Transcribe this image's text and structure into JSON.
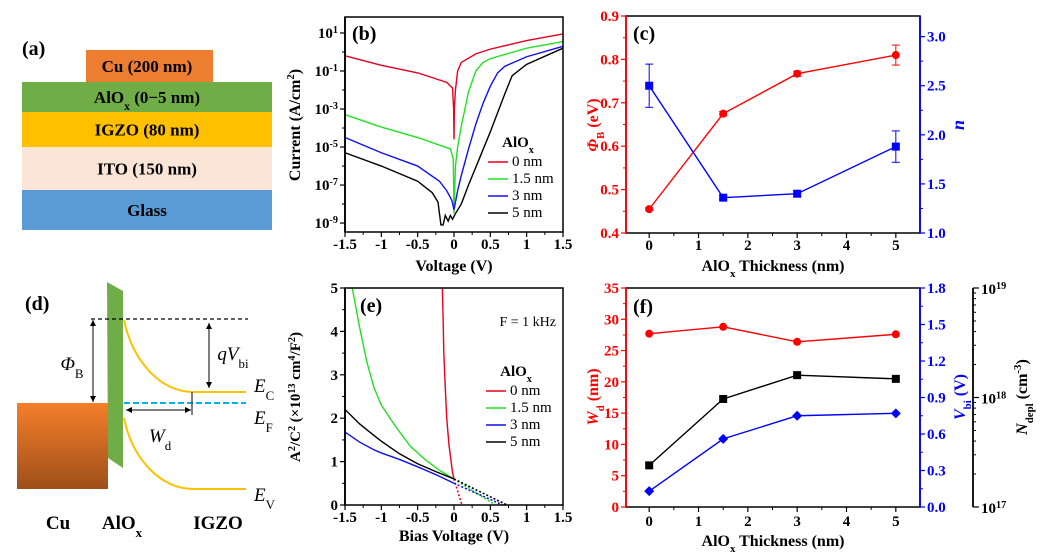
{
  "panel_a": {
    "label": "(a)",
    "layers": [
      {
        "name": [
          [
            "Cu (200 nm)",
            ""
          ]
        ],
        "color": "#ED7D31"
      },
      {
        "name": [
          [
            "AlO",
            ""
          ],
          [
            "x",
            "sub"
          ],
          [
            " (0−5 nm)",
            ""
          ]
        ],
        "color": "#70AD47"
      },
      {
        "name": [
          [
            "IGZO (80 nm)",
            ""
          ]
        ],
        "color": "#FFC000"
      },
      {
        "name": [
          [
            "ITO (150 nm)",
            ""
          ]
        ],
        "color": "#FBE5D6"
      },
      {
        "name": [
          [
            "Glass",
            ""
          ]
        ],
        "color": "#5B9BD5"
      }
    ]
  },
  "panel_d": {
    "label": "(d)",
    "phi_b": [
      [
        "Φ",
        "i"
      ],
      [
        "B",
        "sub"
      ]
    ],
    "qvbi": [
      [
        "qV",
        "i"
      ],
      [
        "bi",
        "sub"
      ]
    ],
    "wd": [
      [
        "W",
        "i"
      ],
      [
        "d",
        "sub"
      ]
    ],
    "ec": [
      [
        "E",
        "i"
      ],
      [
        "C",
        "sub"
      ]
    ],
    "ef": [
      [
        "E",
        "i"
      ],
      [
        "F",
        "sub"
      ]
    ],
    "ev": [
      [
        "E",
        "i"
      ],
      [
        "V",
        "sub"
      ]
    ],
    "materials": [
      [
        [
          "Cu",
          ""
        ]
      ],
      [
        [
          "AlO",
          ""
        ],
        [
          "x",
          "sub"
        ]
      ],
      [
        [
          "IGZO",
          ""
        ]
      ]
    ],
    "colors": {
      "metal": "#E2762A",
      "oxide": "#70AD47",
      "bands": "#FFC000",
      "fermi": "#00B0F0"
    }
  },
  "chart_data": [
    {
      "panel": "(b)",
      "type": "line",
      "y_scale": "log",
      "xlabel": [
        [
          "Voltage (V)",
          ""
        ]
      ],
      "ylabel": [
        [
          "Current (A/cm",
          ""
        ],
        [
          "2",
          "sup"
        ],
        [
          ")",
          ""
        ]
      ],
      "xlim": [
        -1.5,
        1.5
      ],
      "ylim_log10": [
        -9.47,
        1.84
      ],
      "xticks": [
        -1.5,
        -1,
        -0.5,
        0,
        0.5,
        1,
        1.5
      ],
      "xtick_labels": [
        "-1.5",
        "-1",
        "-0.5",
        "0",
        "0.5",
        "1",
        "1.5"
      ],
      "yticks_log10": [
        1,
        -1,
        -3,
        -5,
        -7,
        -9
      ],
      "ytick_labels": [
        [
          [
            "10",
            ""
          ],
          [
            "1",
            "sup"
          ]
        ],
        [
          [
            "10",
            ""
          ],
          [
            "-1",
            "sup"
          ]
        ],
        [
          [
            "10",
            ""
          ],
          [
            "-3",
            "sup"
          ]
        ],
        [
          [
            "10",
            ""
          ],
          [
            "-5",
            "sup"
          ]
        ],
        [
          [
            "10",
            ""
          ],
          [
            "-7",
            "sup"
          ]
        ],
        [
          [
            "10",
            ""
          ],
          [
            "-9",
            "sup"
          ]
        ]
      ],
      "legend_title": [
        [
          "AlO",
          ""
        ],
        [
          "x",
          "sub"
        ]
      ],
      "legend_position": "bottom-right",
      "series": [
        {
          "name": "0 nm",
          "color": "#E8001C",
          "log10_current": [
            [
              -1.5,
              -0.2
            ],
            [
              -1,
              -0.7
            ],
            [
              -0.5,
              -1.1
            ],
            [
              -0.1,
              -1.6
            ],
            [
              -0.02,
              -1.9
            ],
            [
              -0.005,
              -3
            ],
            [
              0,
              -4.6
            ],
            [
              0.005,
              -3
            ],
            [
              0.02,
              -2
            ],
            [
              0.05,
              -1
            ],
            [
              0.1,
              -0.55
            ],
            [
              0.3,
              -0.1
            ],
            [
              0.5,
              0.15
            ],
            [
              1.0,
              0.6
            ],
            [
              1.5,
              0.95
            ]
          ]
        },
        {
          "name": "1.5 nm",
          "color": "#22E022",
          "log10_current": [
            [
              -1.5,
              -3.3
            ],
            [
              -1,
              -3.95
            ],
            [
              -0.5,
              -4.5
            ],
            [
              -0.05,
              -5.1
            ],
            [
              -0.01,
              -5.6
            ],
            [
              0,
              -8.5
            ],
            [
              0.02,
              -6
            ],
            [
              0.05,
              -5
            ],
            [
              0.1,
              -3.9
            ],
            [
              0.2,
              -2.1
            ],
            [
              0.3,
              -1
            ],
            [
              0.4,
              -0.55
            ],
            [
              0.5,
              -0.35
            ],
            [
              1,
              0.2
            ],
            [
              1.5,
              0.55
            ]
          ]
        },
        {
          "name": "3 nm",
          "color": "#1010F0",
          "log10_current": [
            [
              -1.5,
              -4.5
            ],
            [
              -1,
              -5.3
            ],
            [
              -0.5,
              -6
            ],
            [
              -0.2,
              -6.8
            ],
            [
              -0.1,
              -7.3
            ],
            [
              -0.03,
              -7.8
            ],
            [
              0,
              -8.3
            ],
            [
              0.05,
              -7.3
            ],
            [
              0.1,
              -6.5
            ],
            [
              0.2,
              -5.1
            ],
            [
              0.3,
              -3.8
            ],
            [
              0.4,
              -2.7
            ],
            [
              0.5,
              -1.8
            ],
            [
              0.6,
              -1.1
            ],
            [
              0.7,
              -0.75
            ],
            [
              1,
              -0.25
            ],
            [
              1.5,
              0.3
            ]
          ]
        },
        {
          "name": "5 nm",
          "color": "#000000",
          "log10_current": [
            [
              -1.5,
              -5.3
            ],
            [
              -1,
              -6
            ],
            [
              -0.5,
              -6.8
            ],
            [
              -0.3,
              -7.4
            ],
            [
              -0.22,
              -7.9
            ],
            [
              -0.2,
              -8.5
            ],
            [
              -0.18,
              -9.1
            ],
            [
              -0.15,
              -9.1
            ],
            [
              -0.12,
              -8.6
            ],
            [
              -0.08,
              -8.9
            ],
            [
              -0.05,
              -8.6
            ],
            [
              -0.02,
              -8.8
            ],
            [
              0.02,
              -8.5
            ],
            [
              0.1,
              -8
            ],
            [
              0.2,
              -7
            ],
            [
              0.35,
              -5.6
            ],
            [
              0.5,
              -4.2
            ],
            [
              0.6,
              -3.2
            ],
            [
              0.7,
              -2.2
            ],
            [
              0.8,
              -1.25
            ],
            [
              1,
              -0.65
            ],
            [
              1.5,
              0.2
            ]
          ]
        }
      ]
    },
    {
      "panel": "(c)",
      "type": "line",
      "xlabel": [
        [
          "AlO",
          ""
        ],
        [
          "x",
          "sub"
        ],
        [
          " Thickness (nm)",
          ""
        ]
      ],
      "ylabel_left": [
        [
          "Φ",
          "i"
        ],
        [
          "B",
          "sub"
        ],
        [
          " (eV)",
          ""
        ]
      ],
      "ylabel_right": [
        [
          "n",
          "i"
        ]
      ],
      "xlim": [
        -0.47,
        5.49
      ],
      "ylim_left": [
        0.4,
        0.9
      ],
      "ylim_right": [
        1.0,
        3.21
      ],
      "xticks": [
        0,
        1,
        2,
        3,
        4,
        5
      ],
      "xtick_labels": [
        "0",
        "1",
        "2",
        "3",
        "4",
        "5"
      ],
      "yticks_left": [
        0.4,
        0.5,
        0.6,
        0.7,
        0.8,
        0.9
      ],
      "ytick_labels_left": [
        "0.4",
        "0.5",
        "0.6",
        "0.7",
        "0.8",
        "0.9"
      ],
      "yticks_right": [
        1.0,
        1.5,
        2.0,
        2.5,
        3.0
      ],
      "ytick_labels_right": [
        "1.0",
        "1.5",
        "2.0",
        "2.5",
        "3.0"
      ],
      "left_color": "#FF0000",
      "right_color": "#0000FF",
      "series": [
        {
          "name": "Barrier height",
          "axis": "left",
          "marker": "circle",
          "color": "#FF0000",
          "x": [
            0,
            1.5,
            3,
            5
          ],
          "y": [
            0.455,
            0.675,
            0.767,
            0.81
          ],
          "err": [
            0.003,
            0.005,
            0.006,
            0.023
          ]
        },
        {
          "name": "Ideality factor",
          "axis": "right",
          "marker": "square",
          "color": "#0000FF",
          "x": [
            0,
            1.5,
            3,
            5
          ],
          "y": [
            2.5,
            1.36,
            1.4,
            1.88
          ],
          "err": [
            0.22,
            0.02,
            0.03,
            0.16
          ]
        }
      ]
    },
    {
      "panel": "(e)",
      "type": "line",
      "annotation": "F = 1 kHz",
      "xlabel": [
        [
          "Bias Voltage (V)",
          ""
        ]
      ],
      "ylabel": [
        [
          "A",
          ""
        ],
        [
          "2",
          "sup"
        ],
        [
          "/C",
          ""
        ],
        [
          "2",
          "sup"
        ],
        [
          " (×10",
          ""
        ],
        [
          "13",
          "sup"
        ],
        [
          " cm",
          ""
        ],
        [
          "4",
          "sup"
        ],
        [
          "/F",
          ""
        ],
        [
          "2",
          "sup"
        ],
        [
          ")",
          ""
        ]
      ],
      "xlim": [
        -1.5,
        1.5
      ],
      "ylim": [
        0,
        5
      ],
      "xticks": [
        -1.5,
        -1,
        -0.5,
        0,
        0.5,
        1,
        1.5
      ],
      "xtick_labels": [
        "-1.5",
        "-1",
        "-0.5",
        "0",
        "0.5",
        "1",
        "1.5"
      ],
      "yticks": [
        0,
        1,
        2,
        3,
        4,
        5
      ],
      "ytick_labels": [
        "0",
        "1",
        "2",
        "3",
        "4",
        "5"
      ],
      "legend_title": [
        [
          "AlO",
          ""
        ],
        [
          "x",
          "sub"
        ]
      ],
      "legend_position": "right",
      "series": [
        {
          "name": "0 nm",
          "color": "#E8001C",
          "points": [
            [
              -0.16,
              5
            ],
            [
              -0.15,
              4.3
            ],
            [
              -0.14,
              3.5
            ],
            [
              -0.12,
              2.7
            ],
            [
              -0.1,
              2.0
            ],
            [
              -0.07,
              1.4
            ],
            [
              -0.04,
              1.0
            ],
            [
              -0.02,
              0.75
            ],
            [
              0,
              0.6
            ]
          ],
          "fit": [
            [
              0,
              0.6
            ],
            [
              0.11,
              0
            ]
          ]
        },
        {
          "name": "1.5 nm",
          "color": "#22E022",
          "points": [
            [
              -1.4,
              5
            ],
            [
              -1.3,
              4.1
            ],
            [
              -1.2,
              3.3
            ],
            [
              -1.1,
              2.7
            ],
            [
              -1.0,
              2.3
            ],
            [
              -0.8,
              1.8
            ],
            [
              -0.6,
              1.35
            ],
            [
              -0.4,
              1.05
            ],
            [
              -0.2,
              0.8
            ],
            [
              0,
              0.6
            ]
          ],
          "fit": [
            [
              0,
              0.6
            ],
            [
              0.57,
              0
            ]
          ]
        },
        {
          "name": "3 nm",
          "color": "#1010F0",
          "points": [
            [
              -1.5,
              1.68
            ],
            [
              -1.3,
              1.45
            ],
            [
              -1.1,
              1.27
            ],
            [
              -1,
              1.2
            ],
            [
              -0.75,
              1.05
            ],
            [
              -0.5,
              0.88
            ],
            [
              -0.25,
              0.7
            ],
            [
              0,
              0.5
            ]
          ],
          "fit": [
            [
              0,
              0.5
            ],
            [
              0.67,
              0
            ]
          ]
        },
        {
          "name": "5 nm",
          "color": "#000000",
          "points": [
            [
              -1.5,
              2.2
            ],
            [
              -1.3,
              1.87
            ],
            [
              -1.1,
              1.6
            ],
            [
              -1,
              1.47
            ],
            [
              -0.75,
              1.18
            ],
            [
              -0.5,
              0.95
            ],
            [
              -0.25,
              0.77
            ],
            [
              0,
              0.6
            ]
          ],
          "fit": [
            [
              0,
              0.6
            ],
            [
              0.73,
              0
            ]
          ]
        }
      ]
    },
    {
      "panel": "(f)",
      "type": "line",
      "xlabel": [
        [
          "AlO",
          ""
        ],
        [
          "x",
          "sub"
        ],
        [
          " Thickness (nm)",
          ""
        ]
      ],
      "ylabel_left": [
        [
          "W",
          "i"
        ],
        [
          "d",
          "sub"
        ],
        [
          " (nm)",
          ""
        ]
      ],
      "ylabel_right": [
        [
          "V",
          "i"
        ],
        [
          "bi",
          "sub"
        ],
        [
          " (V)",
          ""
        ]
      ],
      "ylabel_third": [
        [
          "N",
          "i"
        ],
        [
          "depl",
          "sub"
        ],
        [
          " (cm",
          ""
        ],
        [
          "-3",
          "sup"
        ],
        [
          ")",
          ""
        ]
      ],
      "xlim": [
        -0.47,
        5.49
      ],
      "ylim_left": [
        0,
        35
      ],
      "ylim_right": [
        0,
        1.8
      ],
      "ylim_third_log10": [
        17,
        19
      ],
      "xticks": [
        0,
        1,
        2,
        3,
        4,
        5
      ],
      "xtick_labels": [
        "0",
        "1",
        "2",
        "3",
        "4",
        "5"
      ],
      "yticks_left": [
        0,
        5,
        10,
        15,
        20,
        25,
        30,
        35
      ],
      "ytick_labels_left": [
        "0",
        "5",
        "10",
        "15",
        "20",
        "25",
        "30",
        "35"
      ],
      "yticks_right": [
        0,
        0.3,
        0.6,
        0.9,
        1.2,
        1.5,
        1.8
      ],
      "ytick_labels_right": [
        "0.0",
        "0.3",
        "0.6",
        "0.9",
        "1.2",
        "1.5",
        "1.8"
      ],
      "yticks_third_log10": [
        17,
        18,
        19
      ],
      "ytick_labels_third": [
        [
          [
            "10",
            ""
          ],
          [
            "17",
            "sup"
          ]
        ],
        [
          [
            "10",
            ""
          ],
          [
            "18",
            "sup"
          ]
        ],
        [
          [
            "10",
            ""
          ],
          [
            "19",
            "sup"
          ]
        ]
      ],
      "left_color": "#FF0000",
      "right_color": "#0000FF",
      "third_color": "#000000",
      "series": [
        {
          "name": "Depletion width",
          "axis": "left",
          "marker": "circle",
          "color": "#FF0000",
          "x": [
            0,
            1.5,
            3,
            5
          ],
          "y": [
            27.7,
            28.8,
            26.4,
            27.6
          ]
        },
        {
          "name": "Built-in voltage",
          "axis": "right",
          "marker": "diamond",
          "color": "#0000FF",
          "x": [
            0,
            1.5,
            3,
            5
          ],
          "y": [
            0.13,
            0.56,
            0.75,
            0.77
          ]
        },
        {
          "name": "Depletion carrier density",
          "axis": "third",
          "marker": "square",
          "color": "#000000",
          "x": [
            0,
            1.5,
            3,
            5
          ],
          "y": [
            2.4e+17,
            9.7e+17,
            1.6e+18,
            1.48e+18
          ]
        }
      ]
    }
  ]
}
